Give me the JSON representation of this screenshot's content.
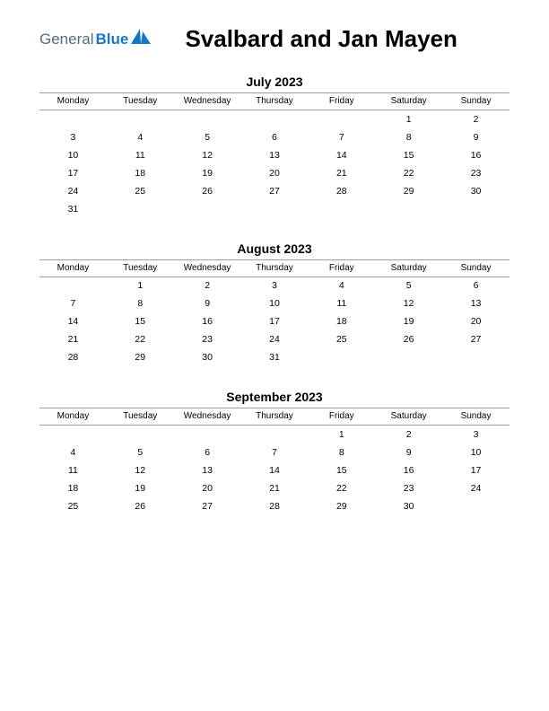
{
  "logo": {
    "text1": "General",
    "text2": "Blue"
  },
  "title": "Svalbard and Jan Mayen",
  "day_headers": [
    "Monday",
    "Tuesday",
    "Wednesday",
    "Thursday",
    "Friday",
    "Saturday",
    "Sunday"
  ],
  "colors": {
    "logo_gray": "#5a6a7a",
    "logo_blue": "#1976c4",
    "text": "#000000",
    "grid_line": "#9aa0a6",
    "background": "#ffffff"
  },
  "typography": {
    "title_fontsize": 26,
    "month_title_fontsize": 14,
    "header_fontsize": 10,
    "cell_fontsize": 10.5
  },
  "months": [
    {
      "title": "July 2023",
      "weeks": [
        [
          "",
          "",
          "",
          "",
          "",
          "1",
          "2"
        ],
        [
          "3",
          "4",
          "5",
          "6",
          "7",
          "8",
          "9"
        ],
        [
          "10",
          "11",
          "12",
          "13",
          "14",
          "15",
          "16"
        ],
        [
          "17",
          "18",
          "19",
          "20",
          "21",
          "22",
          "23"
        ],
        [
          "24",
          "25",
          "26",
          "27",
          "28",
          "29",
          "30"
        ],
        [
          "31",
          "",
          "",
          "",
          "",
          "",
          ""
        ]
      ]
    },
    {
      "title": "August 2023",
      "weeks": [
        [
          "",
          "1",
          "2",
          "3",
          "4",
          "5",
          "6"
        ],
        [
          "7",
          "8",
          "9",
          "10",
          "11",
          "12",
          "13"
        ],
        [
          "14",
          "15",
          "16",
          "17",
          "18",
          "19",
          "20"
        ],
        [
          "21",
          "22",
          "23",
          "24",
          "25",
          "26",
          "27"
        ],
        [
          "28",
          "29",
          "30",
          "31",
          "",
          "",
          ""
        ]
      ]
    },
    {
      "title": "September 2023",
      "weeks": [
        [
          "",
          "",
          "",
          "",
          "1",
          "2",
          "3"
        ],
        [
          "4",
          "5",
          "6",
          "7",
          "8",
          "9",
          "10"
        ],
        [
          "11",
          "12",
          "13",
          "14",
          "15",
          "16",
          "17"
        ],
        [
          "18",
          "19",
          "20",
          "21",
          "22",
          "23",
          "24"
        ],
        [
          "25",
          "26",
          "27",
          "28",
          "29",
          "30",
          ""
        ]
      ]
    }
  ]
}
